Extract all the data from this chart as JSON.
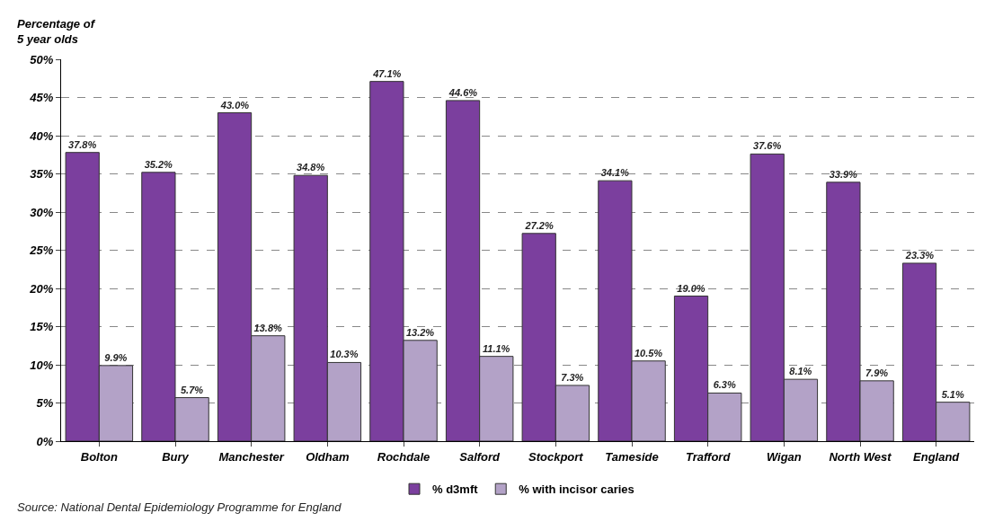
{
  "chart_data": {
    "type": "bar",
    "ylabel": "Percentage of\n5 year olds",
    "categories": [
      "Bolton",
      "Bury",
      "Manchester",
      "Oldham",
      "Rochdale",
      "Salford",
      "Stockport",
      "Tameside",
      "Trafford",
      "Wigan",
      "North West",
      "England"
    ],
    "series": [
      {
        "name": "% d3mft",
        "color": "#7b3f9e",
        "values": [
          37.8,
          35.2,
          43.0,
          34.8,
          47.1,
          44.6,
          27.2,
          34.1,
          19.0,
          37.6,
          33.9,
          23.3
        ],
        "value_labels": [
          "37.8%",
          "35.2%",
          "43.0%",
          "34.8%",
          "47.1%",
          "44.6%",
          "27.2%",
          "34.1%",
          "19.0%",
          "37.6%",
          "33.9%",
          "23.3%"
        ]
      },
      {
        "name": "% with incisor caries",
        "color": "#b3a2c7",
        "values": [
          9.9,
          5.7,
          13.8,
          10.3,
          13.2,
          11.1,
          7.3,
          10.5,
          6.3,
          8.1,
          7.9,
          5.1
        ],
        "value_labels": [
          "9.9%",
          "5.7%",
          "13.8%",
          "10.3%",
          "13.2%",
          "11.1%",
          "7.3%",
          "10.5%",
          "6.3%",
          "8.1%",
          "7.9%",
          "5.1%"
        ]
      }
    ],
    "ylim": [
      0,
      50
    ],
    "yticks": [
      {
        "value": 0,
        "label": "0%"
      },
      {
        "value": 5,
        "label": "5%"
      },
      {
        "value": 10,
        "label": "10%"
      },
      {
        "value": 15,
        "label": "15%"
      },
      {
        "value": 20,
        "label": "20%"
      },
      {
        "value": 25,
        "label": "25%"
      },
      {
        "value": 30,
        "label": "30%"
      },
      {
        "value": 35,
        "label": "35%"
      },
      {
        "value": 40,
        "label": "40%"
      },
      {
        "value": 45,
        "label": "45%"
      },
      {
        "value": 50,
        "label": "50%"
      }
    ],
    "grid": "y",
    "legend": "bottom",
    "annotations": [
      "Source: National Dental Epidemiology Programme for England"
    ]
  }
}
